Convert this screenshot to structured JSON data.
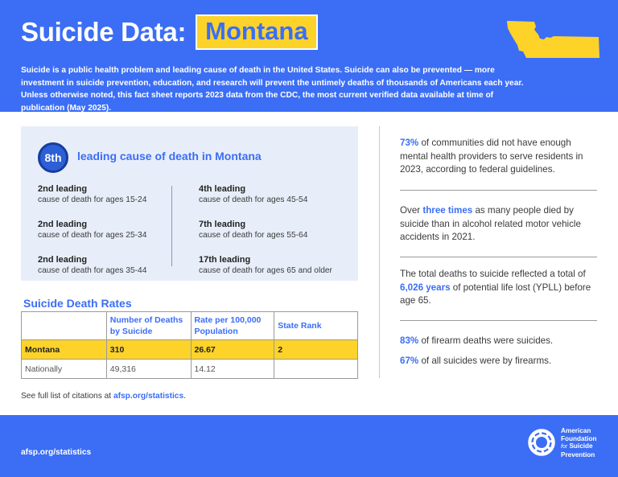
{
  "header": {
    "title": "Suicide Data:",
    "state": "Montana",
    "intro": "Suicide is a public health problem and leading cause of death in the United States. Suicide can also be prevented — more investment in suicide prevention, education, and research will prevent the untimely deaths of thousands of Americans each year. Unless otherwise noted, this fact sheet reports 2023 data from the CDC, the most current verified data available at time of publication (May 2025)."
  },
  "panel": {
    "rank": "8th",
    "rank_title": "leading cause of death in Montana",
    "left_items": [
      {
        "title": "2nd leading",
        "sub": "cause of death for ages 15-24"
      },
      {
        "title": "2nd leading",
        "sub": "cause of death for ages 25-34"
      },
      {
        "title": "2nd leading",
        "sub": "cause of death for ages 35-44"
      }
    ],
    "right_items": [
      {
        "title": "4th leading",
        "sub": "cause of death for ages 45-54"
      },
      {
        "title": "7th leading",
        "sub": "cause of death for ages 55-64"
      },
      {
        "title": "17th leading",
        "sub": "cause of death for ages 65 and older"
      }
    ]
  },
  "rates": {
    "title": "Suicide Death Rates",
    "headers": [
      "",
      "Number of Deaths by Suicide",
      "Rate per 100,000 Population",
      "State Rank"
    ],
    "rows": [
      [
        "Montana",
        "310",
        "26.67",
        "2"
      ],
      [
        "Nationally",
        "49,316",
        "14.12",
        ""
      ]
    ]
  },
  "citation": {
    "prefix": "See full list of citations at ",
    "link": "afsp.org/statistics",
    "suffix": "."
  },
  "stats": [
    {
      "highlight": "73%",
      "pre": "",
      "post": " of communities did not have enough mental health providers to serve residents in 2023, according to federal guidelines."
    },
    {
      "highlight": "three times",
      "pre": "Over ",
      "post": " as many people died by suicide than in alcohol related motor vehicle accidents in 2021."
    },
    {
      "highlight": "6,026 years",
      "pre": "The total deaths to suicide reflected a total of ",
      "post": " of potential life lost (YPLL) before age 65."
    },
    {
      "highlight": "83%",
      "pre": "",
      "post": " of firearm deaths were suicides."
    },
    {
      "highlight": "67%",
      "pre": "",
      "post": " of all suicides were by firearms."
    }
  ],
  "footer": {
    "url": "afsp.org/statistics",
    "logo_lines": [
      "American",
      "Foundation",
      "for",
      "Suicide",
      "Prevention"
    ]
  },
  "colors": {
    "brand_blue": "#3b6ef5",
    "accent_yellow": "#fdd32a",
    "panel_bg": "#e8eef9"
  },
  "icons": {
    "state_shape": "montana-outline-icon",
    "logo": "lifebuoy-logo-icon"
  }
}
